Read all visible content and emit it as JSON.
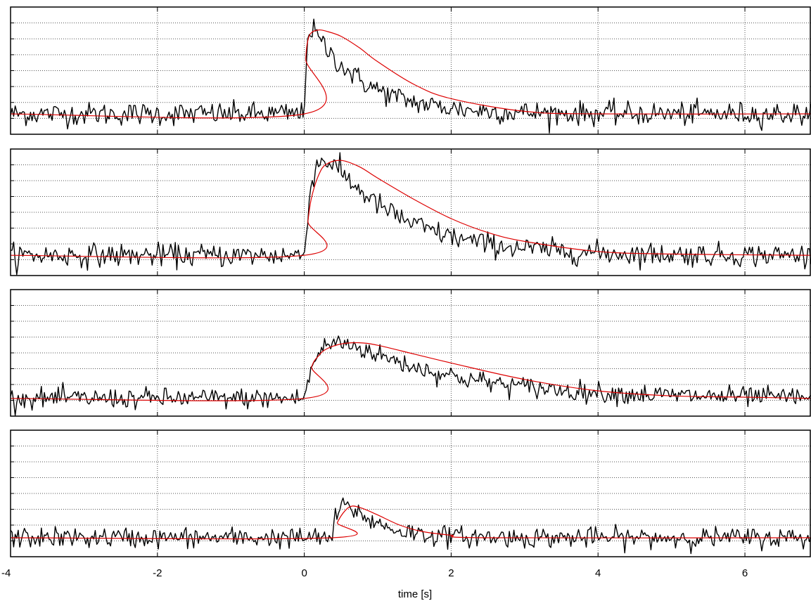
{
  "chart_data": {
    "type": "line",
    "layout": "four vertically stacked panels sharing the x axis",
    "xlabel": "time [s]",
    "xlim": [
      -4,
      6.9
    ],
    "xticks": [
      -4,
      -2,
      0,
      2,
      4,
      6
    ],
    "xtick_labels": [
      "-4",
      "-2",
      "0",
      "2",
      "4",
      "6"
    ],
    "ylim": [
      0,
      1
    ],
    "ytick_labels_shown": false,
    "yticks": [
      0.125,
      0.25,
      0.375,
      0.5,
      0.625,
      0.75,
      0.875
    ],
    "grid": "dotted",
    "series_styles": {
      "measured": {
        "color": "#000000",
        "style": "noisy black line"
      },
      "fit": {
        "color": "#dd0000",
        "style": "smooth red line"
      }
    },
    "panels": [
      {
        "baseline": 0.16,
        "onset": 0.0,
        "rise_tau": 0.03,
        "decay_tau": 0.7,
        "peak": 0.82,
        "noise_sd": 0.045,
        "fit_x": [
          -4,
          0,
          0.02,
          0.05,
          0.1,
          0.2,
          0.3,
          0.5,
          0.75,
          1.0,
          1.5,
          2.0,
          3.0,
          4.0,
          6.9
        ],
        "fit_y": [
          0.16,
          0.16,
          0.59,
          0.74,
          0.8,
          0.82,
          0.81,
          0.77,
          0.68,
          0.57,
          0.39,
          0.28,
          0.18,
          0.16,
          0.16
        ]
      },
      {
        "baseline": 0.16,
        "onset": 0.0,
        "rise_tau": 0.12,
        "decay_tau": 1.0,
        "peak": 0.91,
        "noise_sd": 0.045,
        "fit_x": [
          -4,
          0,
          0.05,
          0.1,
          0.2,
          0.3,
          0.5,
          0.75,
          1.0,
          1.5,
          2.0,
          2.5,
          3.0,
          4.0,
          5.0,
          6.9
        ],
        "fit_y": [
          0.16,
          0.16,
          0.43,
          0.62,
          0.8,
          0.88,
          0.91,
          0.86,
          0.77,
          0.6,
          0.45,
          0.34,
          0.27,
          0.19,
          0.17,
          0.16
        ]
      },
      {
        "baseline": 0.14,
        "onset": 0.0,
        "rise_tau": 0.22,
        "decay_tau": 1.5,
        "peak": 0.58,
        "noise_sd": 0.04,
        "fit_x": [
          -4,
          0,
          0.1,
          0.2,
          0.3,
          0.5,
          0.75,
          1.0,
          1.5,
          2.0,
          3.0,
          4.0,
          5.0,
          6.0,
          6.9
        ],
        "fit_y": [
          0.14,
          0.14,
          0.39,
          0.48,
          0.53,
          0.57,
          0.58,
          0.56,
          0.49,
          0.42,
          0.29,
          0.2,
          0.16,
          0.15,
          0.14
        ]
      },
      {
        "baseline": 0.15,
        "onset": 0.38,
        "rise_tau": 0.1,
        "decay_tau": 0.45,
        "peak": 0.4,
        "noise_sd": 0.04,
        "fit_x": [
          -4,
          0.38,
          0.45,
          0.55,
          0.65,
          0.8,
          1.0,
          1.3,
          1.6,
          2.0,
          2.5,
          6.9
        ],
        "fit_y": [
          0.15,
          0.15,
          0.27,
          0.36,
          0.4,
          0.38,
          0.33,
          0.25,
          0.2,
          0.17,
          0.15,
          0.15
        ]
      }
    ]
  }
}
